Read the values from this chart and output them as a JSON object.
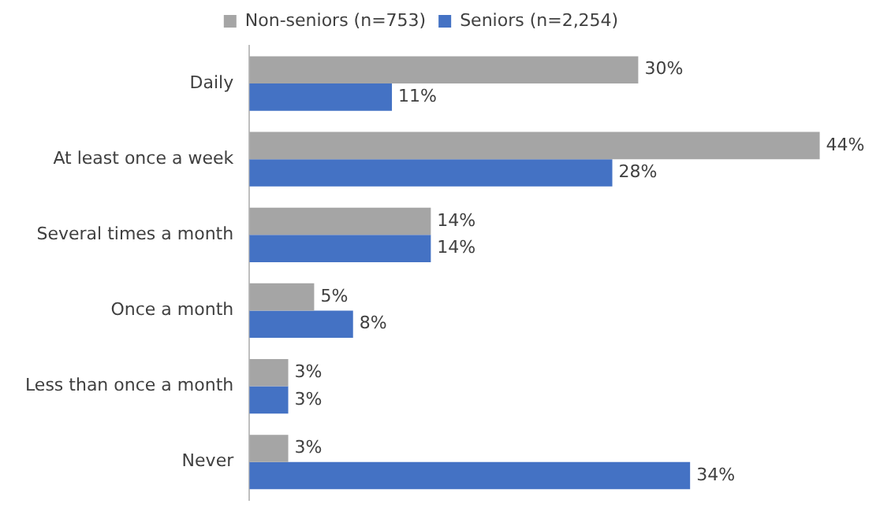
{
  "chart_data": {
    "type": "bar",
    "orientation": "horizontal",
    "categories": [
      "Daily",
      "At least once a week",
      "Several times a month",
      "Once a month",
      "Less than once a month",
      "Never"
    ],
    "series": [
      {
        "name": "Non-seniors (n=753)",
        "color": "#a5a5a5",
        "values": [
          30,
          44,
          14,
          5,
          3,
          3
        ],
        "value_labels": [
          "30%",
          "44%",
          "14%",
          "5%",
          "3%",
          "3%"
        ]
      },
      {
        "name": "Seniors (n=2,254)",
        "color": "#4472c4",
        "values": [
          11,
          28,
          14,
          8,
          3,
          34
        ],
        "value_labels": [
          "11%",
          "28%",
          "14%",
          "8%",
          "3%",
          "34%"
        ]
      }
    ],
    "legend": "top"
  }
}
